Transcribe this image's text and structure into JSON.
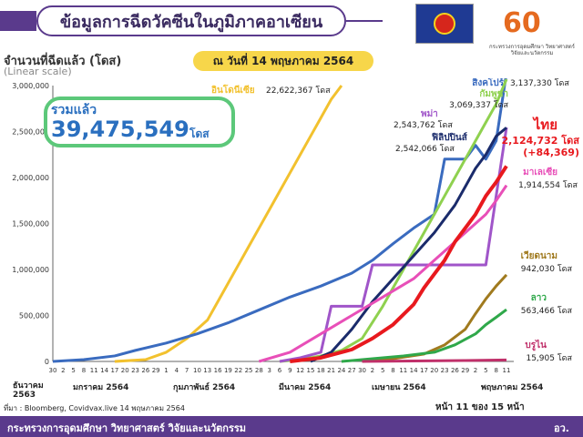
{
  "header": {
    "title": "ข้อมูลการฉีดวัคซีนในภูมิภาคอาเซียน",
    "as_of": "ณ วันที่ 14 พฤษภาคม 2564",
    "ylabel": "จำนวนที่ฉีดแล้ว (โดส)",
    "scale_note": "(Linear scale)",
    "logo_text": "กระทรวงการอุดมศึกษา วิทยาศาสตร์ วิจัยและนวัตกรรม"
  },
  "total": {
    "label": "รวมแล้ว",
    "value": "39,475,549",
    "unit": "โดส"
  },
  "footer": {
    "source": "ที่มา : Bloomberg, Covidvax.live 14 พฤษภาคม 2564",
    "page": "หน้า 11 ของ 15 หน้า",
    "ministry": "กระทรวงการอุดมศึกษา วิทยาศาสตร์ วิจัยและนวัตกรรม",
    "abbr": "อว."
  },
  "chart_data": {
    "type": "line",
    "ylim": [
      0,
      3000000
    ],
    "yticks": [
      "0",
      "500,000",
      "1,000,000",
      "1,500,000",
      "2,000,000",
      "2,500,000",
      "3,000,000"
    ],
    "ytick_values": [
      0,
      500000,
      1000000,
      1500000,
      2000000,
      2500000,
      3000000
    ],
    "xticks": [
      "30",
      "2",
      "5",
      "8",
      "11",
      "14",
      "17",
      "20",
      "23",
      "26",
      "29",
      "1",
      "4",
      "7",
      "10",
      "13",
      "16",
      "19",
      "22",
      "25",
      "28",
      "3",
      "6",
      "9",
      "12",
      "15",
      "18",
      "21",
      "24",
      "27",
      "30",
      "2",
      "5",
      "8",
      "11",
      "14",
      "17",
      "20",
      "23",
      "26",
      "29",
      "2",
      "5",
      "8",
      "11"
    ],
    "months": [
      "ธันวาคม 2563",
      "มกราคม 2564",
      "กุมภาพันธ์ 2564",
      "มีนาคม 2564",
      "เมษายน 2564",
      "พฤษภาคม 2564"
    ],
    "grid": false,
    "series": [
      {
        "name": "อินโดนีเซีย",
        "label": "22,622,367 โดส",
        "color": "#f2c12e",
        "x": [
          6,
          9,
          11,
          13,
          15,
          16,
          17,
          18,
          19,
          20,
          21,
          22,
          23,
          24,
          25,
          26,
          27,
          28
        ],
        "y": [
          0,
          20000,
          100000,
          250000,
          450000,
          650000,
          850000,
          1050000,
          1250000,
          1450000,
          1650000,
          1850000,
          2050000,
          2250000,
          2450000,
          2650000,
          2850000,
          3000000
        ]
      },
      {
        "name": "สิงคโปร์",
        "label": "3,137,330 โดส",
        "color": "#3a6bbf",
        "x": [
          0,
          3,
          6,
          8,
          11,
          14,
          17,
          20,
          23,
          26,
          29,
          31,
          33,
          35,
          37,
          38,
          40,
          41,
          42,
          43,
          44
        ],
        "y": [
          0,
          20000,
          60000,
          120000,
          200000,
          300000,
          420000,
          560000,
          700000,
          820000,
          960000,
          1100000,
          1280000,
          1450000,
          1600000,
          2200000,
          2200000,
          2350000,
          2200000,
          2400000,
          3137330
        ]
      },
      {
        "name": "กัมพูชา",
        "label": "3,069,337 โดส",
        "color": "#8fd14f",
        "x": [
          22,
          24,
          26,
          28,
          30,
          32,
          34,
          36,
          38,
          39,
          40,
          41,
          42,
          43,
          44
        ],
        "y": [
          0,
          20000,
          60000,
          120000,
          250000,
          600000,
          1000000,
          1400000,
          1800000,
          2000000,
          2200000,
          2400000,
          2600000,
          2800000,
          3069337
        ]
      },
      {
        "name": "พม่า",
        "label": "2,543,762 โดส",
        "color": "#a055c9",
        "x": [
          22,
          24,
          26,
          27,
          30,
          31,
          34,
          35,
          38,
          41,
          42,
          43,
          44
        ],
        "y": [
          0,
          40000,
          100000,
          600000,
          600000,
          1050000,
          1050000,
          1050000,
          1050000,
          1050000,
          1050000,
          1800000,
          2543762
        ]
      },
      {
        "name": "ฟิลิปปินส์",
        "label": "2,542,066 โดส",
        "color": "#1a2b6b",
        "x": [
          25,
          27,
          29,
          31,
          33,
          35,
          37,
          39,
          40,
          41,
          42,
          43,
          44
        ],
        "y": [
          0,
          100000,
          350000,
          650000,
          900000,
          1150000,
          1400000,
          1700000,
          1900000,
          2100000,
          2250000,
          2450000,
          2542066
        ]
      },
      {
        "name": "ไทย",
        "label": "2,124,732 โดส",
        "note": "(+84,369)",
        "color": "#e8191e",
        "x": [
          23,
          26,
          29,
          31,
          33,
          35,
          36,
          37,
          38,
          39,
          40,
          41,
          42,
          43,
          44
        ],
        "y": [
          0,
          40000,
          130000,
          250000,
          400000,
          620000,
          800000,
          950000,
          1100000,
          1300000,
          1450000,
          1600000,
          1800000,
          1950000,
          2124732
        ]
      },
      {
        "name": "มาเลเซีย",
        "label": "1,914,554 โดส",
        "color": "#e84fb8",
        "x": [
          20,
          23,
          26,
          29,
          32,
          35,
          37,
          39,
          40,
          41,
          42,
          43,
          44
        ],
        "y": [
          0,
          100000,
          300000,
          500000,
          700000,
          900000,
          1100000,
          1300000,
          1400000,
          1500000,
          1600000,
          1750000,
          1914554
        ]
      },
      {
        "name": "เวียดนาม",
        "label": "942,030 โดส",
        "color": "#a07a1e",
        "x": [
          30,
          33,
          36,
          38,
          40,
          41,
          42,
          43,
          44
        ],
        "y": [
          0,
          30000,
          80000,
          180000,
          350000,
          520000,
          680000,
          820000,
          942030
        ]
      },
      {
        "name": "ลาว",
        "label": "563,466 โดส",
        "color": "#2fa84a",
        "x": [
          28,
          31,
          34,
          37,
          39,
          41,
          42,
          43,
          44
        ],
        "y": [
          0,
          30000,
          60000,
          100000,
          180000,
          300000,
          400000,
          480000,
          563466
        ]
      },
      {
        "name": "บรูไน",
        "label": "15,905 โดส",
        "color": "#c0306a",
        "x": [
          30,
          35,
          40,
          44
        ],
        "y": [
          0,
          5000,
          10000,
          15905
        ]
      }
    ]
  }
}
